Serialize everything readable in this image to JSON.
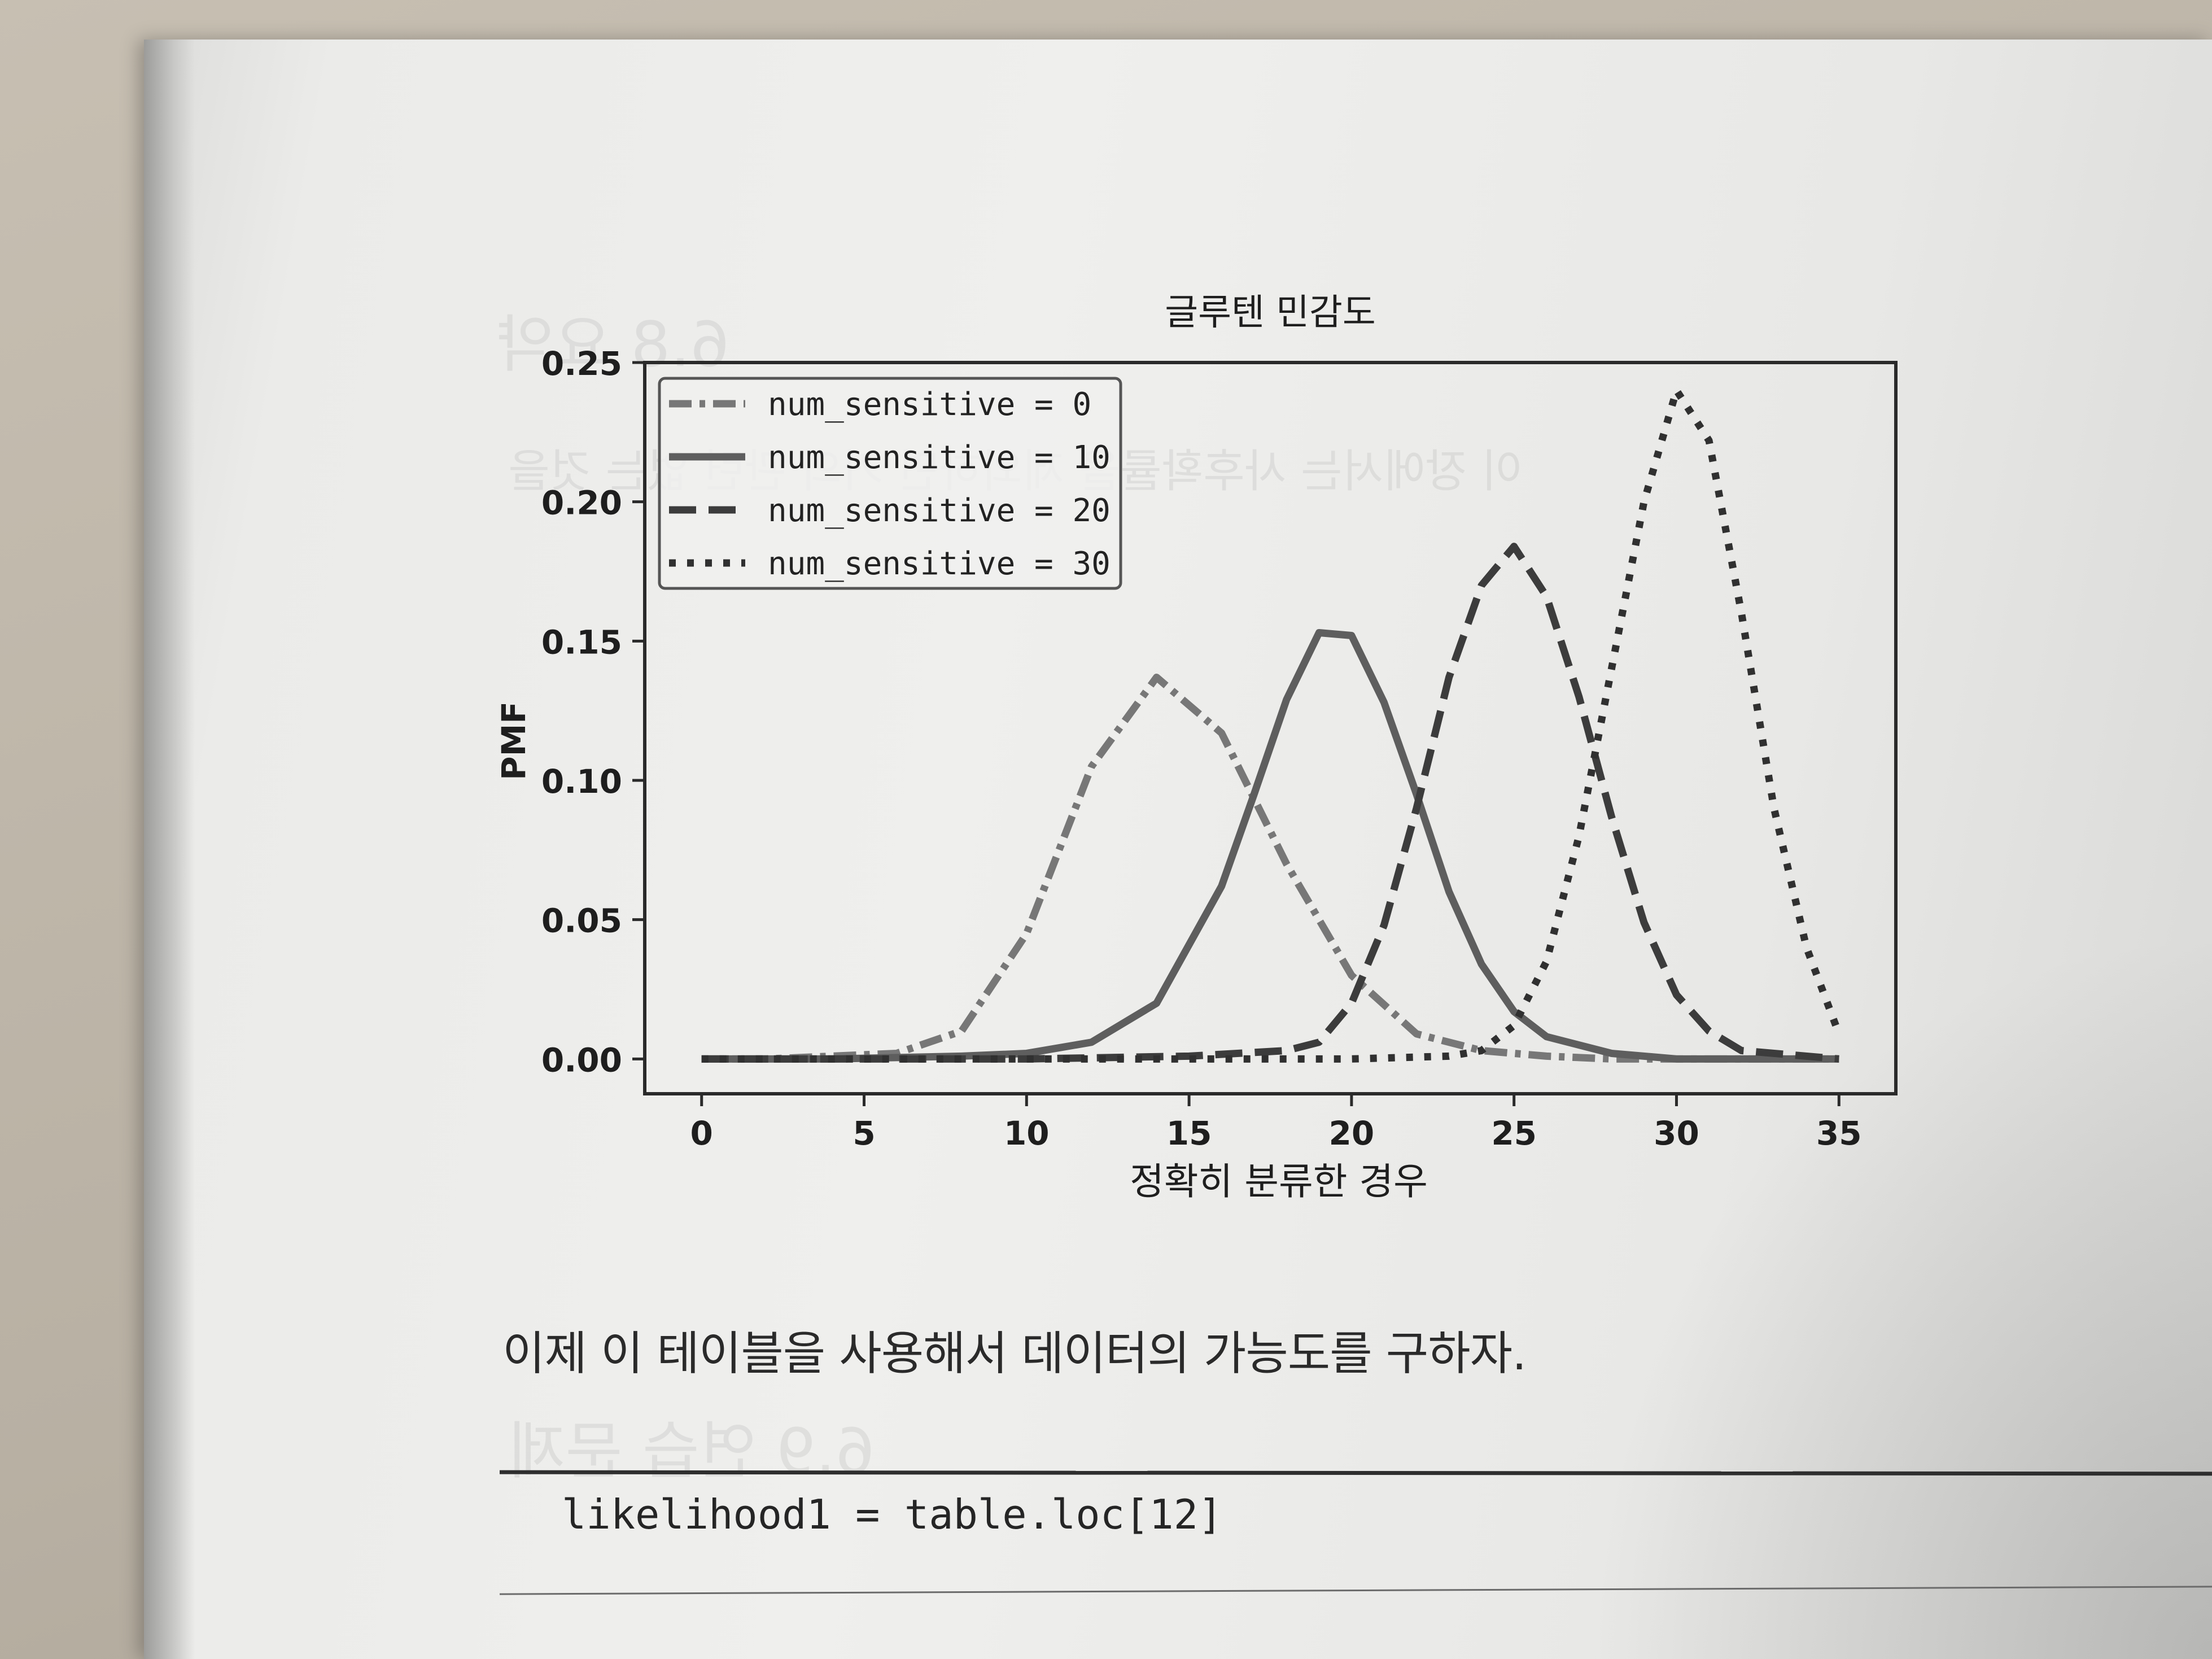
{
  "chart_data": {
    "type": "line",
    "title": "글루텐 민감도",
    "xlabel": "정확히 분류한 경우",
    "ylabel": "PMF",
    "xlim": [
      -1.75,
      36.75
    ],
    "ylim": [
      -0.0125,
      0.25
    ],
    "x_ticks": [
      "0",
      "5",
      "10",
      "15",
      "20",
      "25",
      "30",
      "35"
    ],
    "y_ticks": [
      "0.00",
      "0.05",
      "0.10",
      "0.15",
      "0.20",
      "0.25"
    ],
    "grid": false,
    "legend_position": "upper-left",
    "series": [
      {
        "name": "num_sensitive = 0",
        "style": "dashdot",
        "color": "#777777",
        "x": [
          0,
          2,
          4,
          6,
          8,
          10,
          12,
          14,
          16,
          18,
          20,
          22,
          24,
          26,
          28,
          30,
          32,
          35
        ],
        "y": [
          0.0,
          0.0,
          0.001,
          0.002,
          0.01,
          0.045,
          0.105,
          0.137,
          0.117,
          0.07,
          0.03,
          0.009,
          0.003,
          0.001,
          0.0,
          0.0,
          0.0,
          0.0
        ]
      },
      {
        "name": "num_sensitive = 10",
        "style": "solid",
        "color": "#5e5e5e",
        "x": [
          0,
          4,
          8,
          10,
          12,
          14,
          16,
          17,
          18,
          19,
          20,
          21,
          22,
          23,
          24,
          25,
          26,
          28,
          30,
          32,
          35
        ],
        "y": [
          0.0,
          0.0,
          0.001,
          0.002,
          0.006,
          0.02,
          0.062,
          0.095,
          0.129,
          0.153,
          0.152,
          0.128,
          0.095,
          0.06,
          0.034,
          0.017,
          0.008,
          0.002,
          0.0,
          0.0,
          0.0
        ]
      },
      {
        "name": "num_sensitive = 20",
        "style": "dashed",
        "color": "#3c3c3c",
        "x": [
          0,
          10,
          15,
          18,
          19,
          20,
          21,
          22,
          23,
          24,
          25,
          26,
          27,
          28,
          29,
          30,
          31,
          32,
          35
        ],
        "y": [
          0.0,
          0.0,
          0.001,
          0.003,
          0.006,
          0.02,
          0.048,
          0.09,
          0.137,
          0.17,
          0.184,
          0.166,
          0.13,
          0.087,
          0.049,
          0.023,
          0.01,
          0.003,
          0.0
        ]
      },
      {
        "name": "num_sensitive = 30",
        "style": "dotted",
        "color": "#303030",
        "x": [
          0,
          15,
          20,
          23,
          24,
          25,
          26,
          27,
          28,
          29,
          30,
          31,
          32,
          33,
          34,
          35
        ],
        "y": [
          0.0,
          0.0,
          0.0,
          0.001,
          0.003,
          0.012,
          0.035,
          0.08,
          0.14,
          0.2,
          0.24,
          0.222,
          0.16,
          0.09,
          0.04,
          0.009
        ]
      }
    ]
  },
  "page": {
    "paragraph": "이제 이 테이블을 사용해서 데이터의 가능도를 구하자.",
    "code": "likelihood1 = table.loc[12]"
  }
}
